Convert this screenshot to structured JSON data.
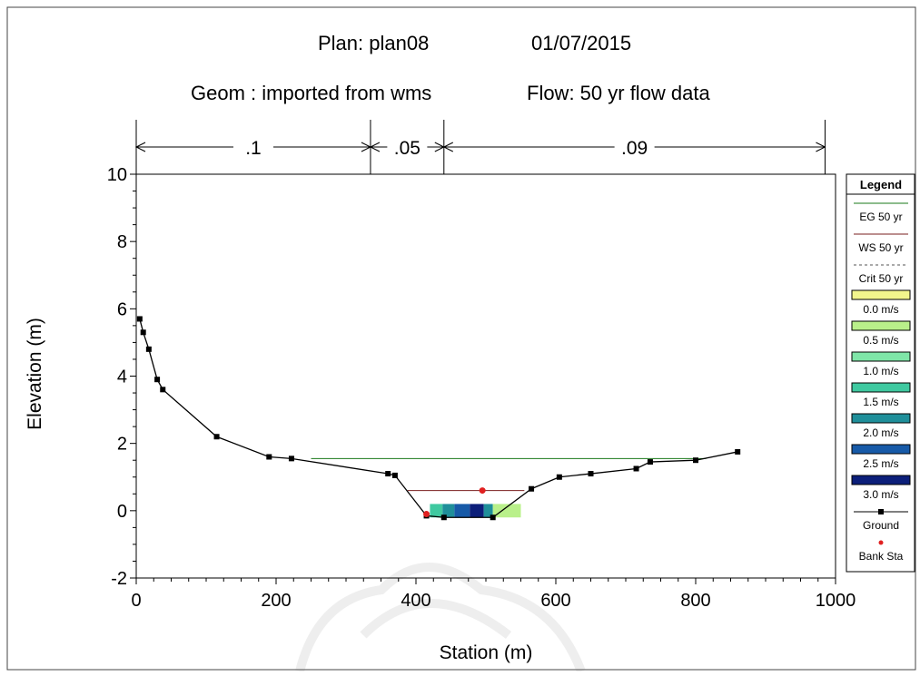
{
  "header": {
    "plan": "Plan: plan08",
    "date": "01/07/2015",
    "geom": "Geom : imported  from wms",
    "flow": "Flow: 50 yr flow data"
  },
  "colors": {
    "ground": "#000000",
    "eg": "#1a7a1a",
    "ws": "#7a1f1f",
    "bank": "#e02020",
    "water_scale": [
      "#f2f58c",
      "#b9f08a",
      "#7fe6a8",
      "#3fc9a0",
      "#1f8f9a",
      "#175aa8",
      "#0c1f7a"
    ]
  },
  "chart_data": {
    "type": "line",
    "xlabel": "Station (m)",
    "ylabel": "Elevation (m)",
    "xlim": [
      0,
      1000
    ],
    "ylim": [
      -2,
      10
    ],
    "xticks": [
      "0",
      "200",
      "400",
      "600",
      "800",
      "1000"
    ],
    "yticks": [
      "-2",
      "0",
      "2",
      "4",
      "6",
      "8",
      "10"
    ],
    "manning_n": [
      {
        "label": ".1",
        "from": 0,
        "to": 335
      },
      {
        "label": ".05",
        "from": 335,
        "to": 440
      },
      {
        "label": ".09",
        "from": 440,
        "to": 985
      }
    ],
    "ground": {
      "x": [
        5,
        10,
        18,
        30,
        38,
        115,
        190,
        222,
        360,
        370,
        415,
        440,
        510,
        565,
        605,
        650,
        715,
        735,
        800,
        860
      ],
      "y": [
        5.7,
        5.3,
        4.8,
        3.9,
        3.6,
        2.2,
        1.6,
        1.55,
        1.1,
        1.05,
        -0.15,
        -0.2,
        -0.2,
        0.65,
        1.0,
        1.1,
        1.25,
        1.45,
        1.5,
        1.75
      ]
    },
    "eg_50yr": {
      "x": [
        250,
        815
      ],
      "y": [
        1.55,
        1.55
      ]
    },
    "ws_50yr": {
      "x": [
        388,
        555
      ],
      "y": [
        0.6,
        0.6
      ]
    },
    "bank_sta": [
      {
        "x": 415,
        "y": -0.1
      },
      {
        "x": 495,
        "y": 0.6
      }
    ],
    "velocity_bands": [
      {
        "x0": 420,
        "x1": 438,
        "color": "#3fc9a0"
      },
      {
        "x0": 438,
        "x1": 455,
        "color": "#1f8f9a"
      },
      {
        "x0": 455,
        "x1": 477,
        "color": "#175aa8"
      },
      {
        "x0": 477,
        "x1": 497,
        "color": "#0c1f7a"
      },
      {
        "x0": 497,
        "x1": 510,
        "color": "#1f8f9a"
      },
      {
        "x0": 510,
        "x1": 550,
        "color": "#b9f08a"
      }
    ],
    "legend": {
      "title": "Legend",
      "items": [
        "EG 50 yr",
        "WS 50 yr",
        "Crit 50 yr",
        "0.0 m/s",
        "0.5 m/s",
        "1.0 m/s",
        "1.5 m/s",
        "2.0 m/s",
        "2.5 m/s",
        "3.0 m/s",
        "Ground",
        "Bank Sta"
      ]
    }
  }
}
